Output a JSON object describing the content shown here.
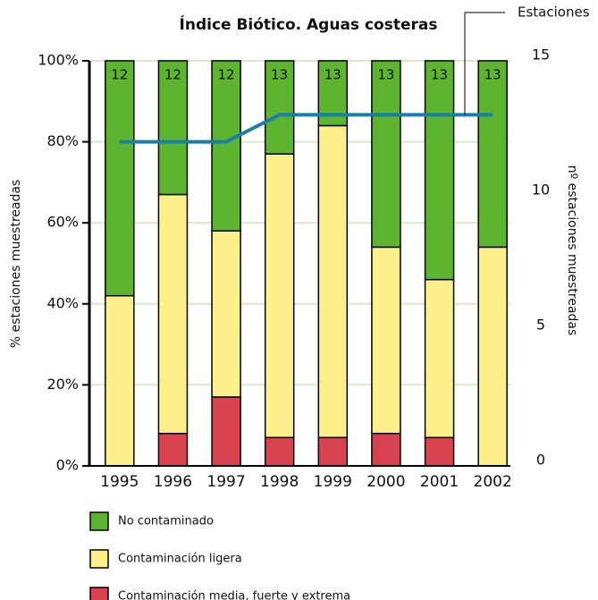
{
  "chart_data": {
    "type": "bar",
    "title": "Índice Biótico. Aguas costeras",
    "categories": [
      "1995",
      "1996",
      "1997",
      "1998",
      "1999",
      "2000",
      "2001",
      "2002"
    ],
    "stacked": true,
    "series": [
      {
        "name": "No contaminado",
        "color": "#5db52f",
        "values": [
          58,
          33,
          42,
          23,
          16,
          46,
          54,
          46
        ]
      },
      {
        "name": "Contaminación ligera",
        "color": "#fdf08a",
        "values": [
          42,
          59,
          41,
          70,
          77,
          46,
          39,
          54
        ]
      },
      {
        "name": "Contaminación media, fuerte y extrema",
        "color": "#d9434f",
        "values": [
          0,
          8,
          17,
          7,
          7,
          8,
          7,
          0
        ]
      },
      {
        "name": "Estaciones",
        "color": "#1a7fa8",
        "type": "line",
        "axis": "y2",
        "values": [
          12,
          12,
          12,
          13,
          13,
          13,
          13,
          13
        ]
      }
    ],
    "ylabel": "% estaciones muestreadas",
    "y2label": "nº estaciones muestreadas",
    "ylim": [
      0,
      100
    ],
    "yticks": [
      {
        "value": 0,
        "label": "0%"
      },
      {
        "value": 20,
        "label": "20%"
      },
      {
        "value": 40,
        "label": "40%"
      },
      {
        "value": 60,
        "label": "60%"
      },
      {
        "value": 80,
        "label": "80%"
      },
      {
        "value": 100,
        "label": "100%"
      }
    ],
    "y2lim": [
      0,
      15
    ],
    "y2ticks": [
      0,
      5,
      10,
      15
    ],
    "grid": true
  }
}
